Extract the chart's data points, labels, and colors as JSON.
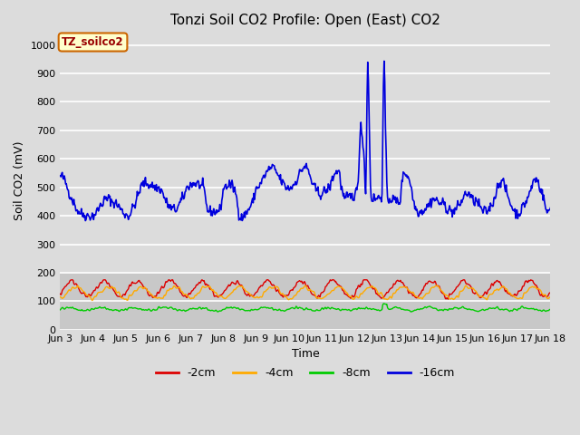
{
  "title": "Tonzi Soil CO2 Profile: Open (East) CO2",
  "xlabel": "Time",
  "ylabel": "Soil CO2 (mV)",
  "ylim": [
    0,
    1050
  ],
  "yticks": [
    0,
    100,
    200,
    300,
    400,
    500,
    600,
    700,
    800,
    900,
    1000
  ],
  "bg_upper": "#dcdcdc",
  "bg_lower": "#c8c8c8",
  "grid_color": "#ffffff",
  "title_fontsize": 11,
  "label_fontsize": 9,
  "tick_fontsize": 8,
  "legend_box_label": "TZ_soilco2",
  "legend_box_color": "#ffffcc",
  "legend_box_edge": "#cc6600",
  "series": {
    "neg2cm": {
      "color": "#dd0000",
      "label": "-2cm",
      "linewidth": 1.0
    },
    "neg4cm": {
      "color": "#ffaa00",
      "label": "-4cm",
      "linewidth": 1.0
    },
    "neg8cm": {
      "color": "#00cc00",
      "label": "-8cm",
      "linewidth": 1.0
    },
    "neg16cm": {
      "color": "#0000dd",
      "label": "-16cm",
      "linewidth": 1.2
    }
  },
  "xstart": 3,
  "xend": 18,
  "xtick_labels": [
    "Jun 3",
    "Jun 4",
    "Jun 5",
    "Jun 6",
    "Jun 7",
    "Jun 8",
    "Jun 9",
    "Jun 10",
    "Jun 11",
    "Jun 12",
    "Jun 13",
    "Jun 14",
    "Jun 15",
    "Jun 16",
    "Jun 17",
    "Jun 18"
  ],
  "xtick_positions": [
    3,
    4,
    5,
    6,
    7,
    8,
    9,
    10,
    11,
    12,
    13,
    14,
    15,
    16,
    17,
    18
  ]
}
